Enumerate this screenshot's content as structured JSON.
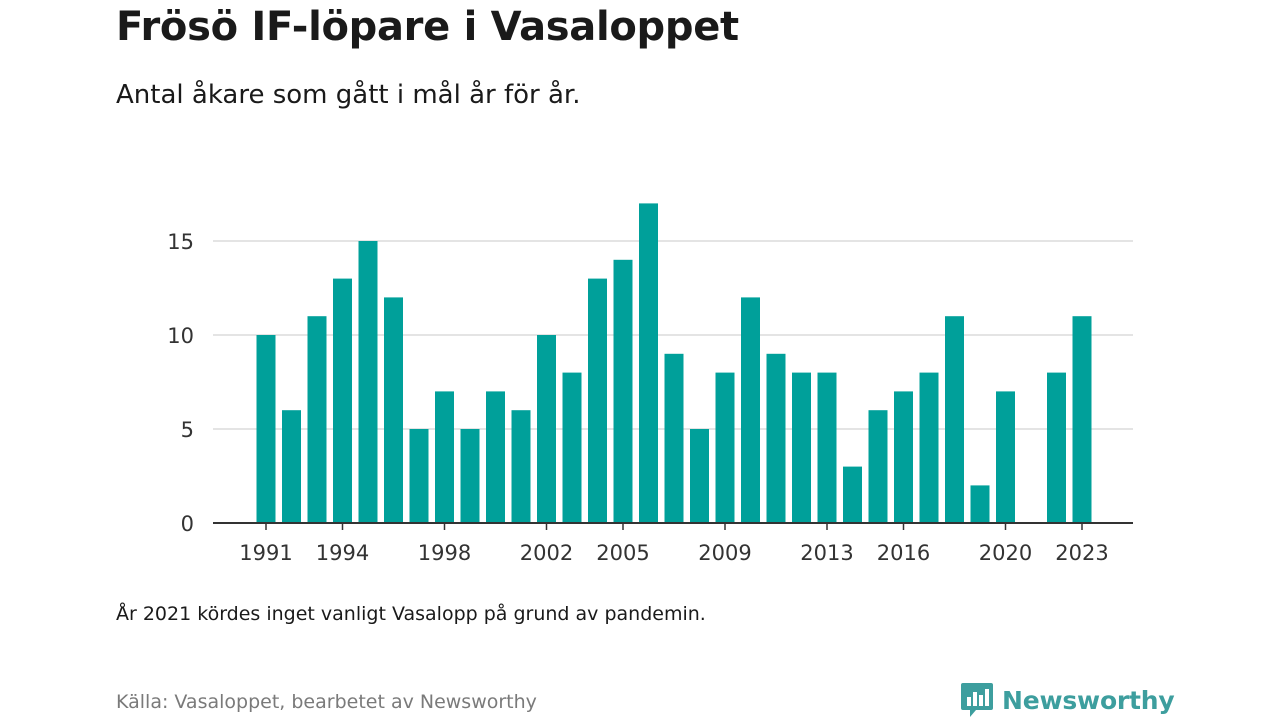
{
  "header": {
    "title": "Frösö IF-löpare i Vasaloppet",
    "subtitle": "Antal åkare som gått i mål år för år."
  },
  "footer": {
    "note": "År 2021 kördes inget vanligt Vasalopp på grund av pandemin.",
    "source": "Källa: Vasaloppet, bearbetet av Newsworthy",
    "brand": "Newsworthy",
    "brand_icon": "chart-bubble-icon"
  },
  "colors": {
    "bar": "#00a09a",
    "grid": "#dcdcdc",
    "axis": "#333333",
    "brand": "#3d9e9e"
  },
  "chart_data": {
    "type": "bar",
    "title": "Frösö IF-löpare i Vasaloppet",
    "subtitle": "Antal åkare som gått i mål år för år.",
    "xlabel": "",
    "ylabel": "",
    "categories": [
      1991,
      1992,
      1993,
      1994,
      1995,
      1996,
      1997,
      1998,
      1999,
      2000,
      2001,
      2002,
      2003,
      2004,
      2005,
      2006,
      2007,
      2008,
      2009,
      2010,
      2011,
      2012,
      2013,
      2014,
      2015,
      2016,
      2017,
      2018,
      2019,
      2020,
      2021,
      2022,
      2023
    ],
    "values": [
      10,
      6,
      11,
      13,
      15,
      12,
      5,
      7,
      5,
      7,
      6,
      10,
      8,
      13,
      14,
      17,
      9,
      5,
      8,
      12,
      9,
      8,
      8,
      3,
      6,
      7,
      8,
      11,
      2,
      7,
      0,
      8,
      11
    ],
    "xticks": [
      1991,
      1994,
      1998,
      2002,
      2005,
      2009,
      2013,
      2016,
      2020,
      2023
    ],
    "yticks": [
      0,
      5,
      10,
      15
    ],
    "ylim": [
      0,
      17
    ],
    "grid": "horizontal",
    "legend": "none"
  }
}
